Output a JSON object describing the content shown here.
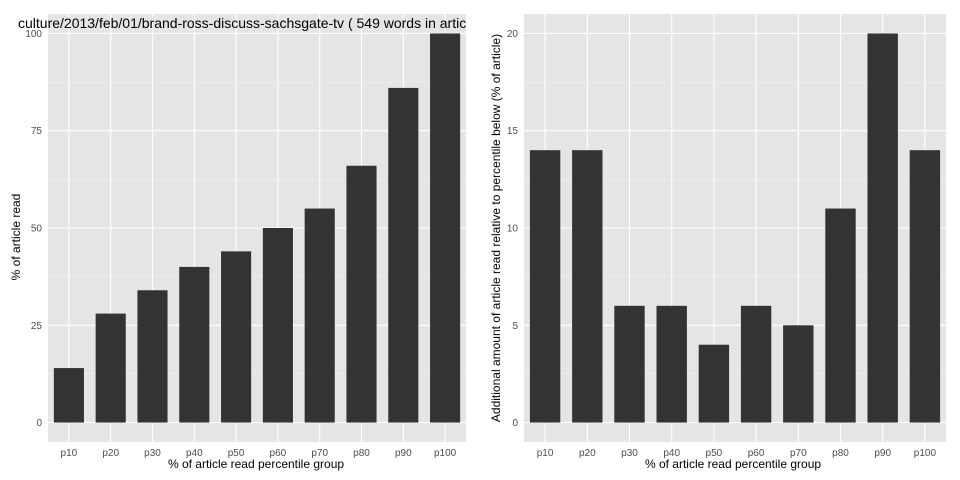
{
  "colors": {
    "panel_background": "#e5e5e5",
    "grid_major": "#ffffff",
    "grid_minor": "#f2f2f2",
    "bar_fill": "#333333",
    "tick_text": "#4d4d4d"
  },
  "chart_data": [
    {
      "type": "bar",
      "title": "culture/2013/feb/01/brand-ross-discuss-sachsgate-tv ( 549 words in artic",
      "xlabel": "% of article read percentile group",
      "ylabel": "% of article read",
      "categories": [
        "p10",
        "p20",
        "p30",
        "p40",
        "p50",
        "p60",
        "p70",
        "p80",
        "p90",
        "p100"
      ],
      "values": [
        14,
        28,
        34,
        40,
        44,
        50,
        55,
        66,
        86,
        100
      ],
      "ylim": [
        -5,
        105
      ],
      "yticks": [
        0,
        25,
        50,
        75,
        100
      ],
      "grid": true,
      "legend": "none"
    },
    {
      "type": "bar",
      "title": "",
      "xlabel": "% of article read percentile group",
      "ylabel": "Additional amount of article read relative to percentile below (% of article)",
      "categories": [
        "p10",
        "p20",
        "p30",
        "p40",
        "p50",
        "p60",
        "p70",
        "p80",
        "p90",
        "p100"
      ],
      "values": [
        14,
        14,
        6,
        6,
        4,
        6,
        5,
        11,
        20,
        14
      ],
      "ylim": [
        -1,
        21
      ],
      "yticks": [
        0,
        5,
        10,
        15,
        20
      ],
      "grid": true,
      "legend": "none"
    }
  ]
}
